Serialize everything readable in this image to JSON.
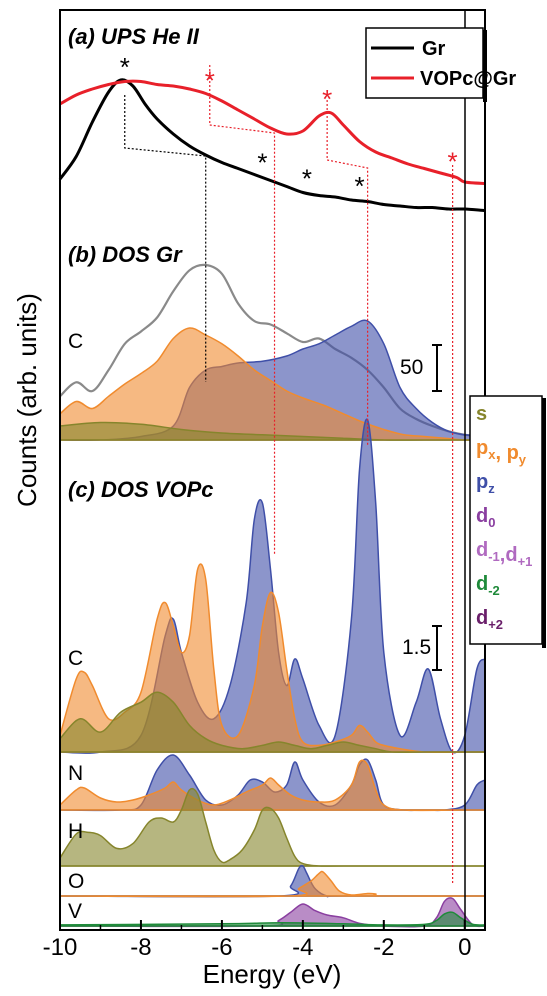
{
  "chart_data": {
    "type": "area",
    "xlabel": "Energy (eV)",
    "ylabel": "Counts (arb. units)",
    "xlim": [
      -10,
      0.5
    ],
    "x_ticks": [
      "-10",
      "-8",
      "-6",
      "-4",
      "-2",
      "0"
    ],
    "panels": {
      "a": {
        "title": "(a) UPS He II"
      },
      "b": {
        "title": "(b) DOS Gr",
        "element_label": "C",
        "scale_bar": "50"
      },
      "c": {
        "title": "(c) DOS VOPc",
        "element_labels": [
          "C",
          "N",
          "H",
          "O",
          "V"
        ],
        "scale_bar": "1.5"
      }
    },
    "legend_ups": [
      {
        "name": "Gr",
        "color": "#000000"
      },
      {
        "name": "VOPc@Gr",
        "color": "#e8202a"
      }
    ],
    "legend_orbitals": [
      {
        "main": "s",
        "sub": "",
        "main2": "",
        "sub2": "",
        "color": "#86852c"
      },
      {
        "main": "p",
        "sub": "x",
        "main2": ", p",
        "sub2": "y",
        "color": "#f08b2e"
      },
      {
        "main": "p",
        "sub": "z",
        "main2": "",
        "sub2": "",
        "color": "#3f4fa8"
      },
      {
        "main": "d",
        "sub": "0",
        "main2": "",
        "sub2": "",
        "color": "#8a3fa0"
      },
      {
        "main": "d",
        "sub": "-1",
        "main2": ",d",
        "sub2": "+1",
        "color": "#b06ac0"
      },
      {
        "main": "d",
        "sub": "-2",
        "main2": "",
        "sub2": "",
        "color": "#1f8a3a"
      },
      {
        "main": "d",
        "sub": "+2",
        "main2": "",
        "sub2": "",
        "color": "#6a1f6a"
      }
    ],
    "ups_peak_markers": {
      "Gr": [
        -8.4,
        -5.0,
        -3.9,
        -2.6
      ],
      "VOPc@Gr": [
        -6.3,
        -3.4,
        -0.3
      ]
    },
    "guide_lines_black": [
      [
        -8.4,
        -6.4
      ]
    ],
    "guide_lines_red": [
      [
        -6.3,
        -4.7
      ],
      [
        -3.4,
        -2.4
      ],
      [
        -0.3,
        -0.3
      ]
    ],
    "series": [
      {
        "name": "Gr UPS",
        "panel": "a",
        "color": "#000000",
        "x": [
          -10,
          -9.6,
          -9.2,
          -8.8,
          -8.5,
          -8.2,
          -7.9,
          -7.6,
          -7.2,
          -6.8,
          -6.4,
          -6.0,
          -5.6,
          -5.2,
          -4.8,
          -4.4,
          -4.0,
          -3.6,
          -3.2,
          -2.8,
          -2.4,
          -2.0,
          -1.6,
          -1.2,
          -0.8,
          -0.4,
          0,
          0.5
        ],
        "y": [
          0.3,
          0.45,
          0.68,
          0.88,
          0.96,
          0.92,
          0.8,
          0.7,
          0.6,
          0.52,
          0.46,
          0.41,
          0.37,
          0.33,
          0.29,
          0.25,
          0.21,
          0.19,
          0.18,
          0.16,
          0.15,
          0.13,
          0.12,
          0.11,
          0.11,
          0.1,
          0.1,
          0.09
        ]
      },
      {
        "name": "VOPc@Gr UPS",
        "panel": "a",
        "color": "#e8202a",
        "x": [
          -10,
          -9.6,
          -9.2,
          -8.8,
          -8.4,
          -8.0,
          -7.6,
          -7.2,
          -6.8,
          -6.4,
          -6.0,
          -5.6,
          -5.2,
          -4.8,
          -4.4,
          -4.0,
          -3.6,
          -3.3,
          -3.0,
          -2.6,
          -2.2,
          -1.8,
          -1.4,
          -1.0,
          -0.6,
          -0.2,
          0,
          0.5
        ],
        "y": [
          0.8,
          0.86,
          0.9,
          0.93,
          0.95,
          0.95,
          0.93,
          0.92,
          0.9,
          0.87,
          0.82,
          0.76,
          0.7,
          0.64,
          0.6,
          0.62,
          0.72,
          0.74,
          0.66,
          0.55,
          0.48,
          0.44,
          0.4,
          0.37,
          0.34,
          0.31,
          0.28,
          0.27
        ]
      },
      {
        "name": "Gr C total",
        "panel": "b",
        "color": "#8a8a8a",
        "x": [
          -10,
          -9.6,
          -9.2,
          -8.8,
          -8.4,
          -8.0,
          -7.6,
          -7.2,
          -6.8,
          -6.4,
          -6.0,
          -5.6,
          -5.2,
          -4.8,
          -4.4,
          -4.0,
          -3.6,
          -3.2,
          -2.8,
          -2.4,
          -2.0,
          -1.6,
          -1.2,
          -0.8,
          -0.4,
          0,
          0.5
        ],
        "y": [
          0.25,
          0.33,
          0.28,
          0.4,
          0.55,
          0.62,
          0.7,
          0.85,
          0.97,
          1.0,
          0.95,
          0.78,
          0.68,
          0.66,
          0.61,
          0.56,
          0.58,
          0.52,
          0.47,
          0.4,
          0.3,
          0.18,
          0.12,
          0.08,
          0.05,
          0.03,
          0.02
        ]
      },
      {
        "name": "Gr C pz",
        "panel": "b",
        "color": "#3f4fa8",
        "x": [
          -10,
          -9.0,
          -8.0,
          -7.2,
          -6.8,
          -6.4,
          -6.0,
          -5.6,
          -5.0,
          -4.4,
          -4.0,
          -3.6,
          -3.2,
          -2.8,
          -2.4,
          -2.0,
          -1.6,
          -1.2,
          -0.8,
          -0.4,
          0,
          0.5
        ],
        "y": [
          0.0,
          0.0,
          0.02,
          0.08,
          0.3,
          0.4,
          0.42,
          0.44,
          0.45,
          0.48,
          0.52,
          0.55,
          0.6,
          0.65,
          0.68,
          0.55,
          0.3,
          0.18,
          0.1,
          0.05,
          0.03,
          0.02
        ]
      },
      {
        "name": "Gr C px,py",
        "panel": "b",
        "color": "#f08b2e",
        "x": [
          -10,
          -9.6,
          -9.2,
          -8.8,
          -8.4,
          -8.0,
          -7.6,
          -7.2,
          -6.8,
          -6.4,
          -6.0,
          -5.6,
          -5.2,
          -4.8,
          -4.4,
          -4.0,
          -3.5,
          -3.0,
          -2.5,
          -2.0,
          -1.5,
          -1.0,
          -0.5,
          0,
          0.5
        ],
        "y": [
          0.15,
          0.22,
          0.18,
          0.25,
          0.32,
          0.38,
          0.45,
          0.58,
          0.64,
          0.6,
          0.55,
          0.48,
          0.4,
          0.34,
          0.28,
          0.24,
          0.2,
          0.15,
          0.1,
          0.06,
          0.03,
          0.02,
          0.01,
          0.0,
          0.0
        ]
      },
      {
        "name": "Gr C s",
        "panel": "b",
        "color": "#86852c",
        "x": [
          -10,
          -9.0,
          -8.0,
          -7.0,
          -6.0,
          -5.0,
          -4.0,
          -3.0,
          -2.0,
          -1.0,
          0,
          0.5
        ],
        "y": [
          0.08,
          0.1,
          0.09,
          0.06,
          0.04,
          0.03,
          0.02,
          0.01,
          0.0,
          0.0,
          0.0,
          0.0
        ]
      },
      {
        "name": "VOPc C pz",
        "panel": "c-C",
        "color": "#3f4fa8",
        "x": [
          -10,
          -9.0,
          -8.0,
          -7.4,
          -7.2,
          -7.0,
          -6.6,
          -6.2,
          -5.8,
          -5.4,
          -5.2,
          -5.0,
          -4.8,
          -4.6,
          -4.4,
          -4.2,
          -4.0,
          -3.6,
          -3.2,
          -2.8,
          -2.6,
          -2.4,
          -2.2,
          -2.0,
          -1.6,
          -1.2,
          -0.9,
          -0.6,
          -0.3,
          0,
          0.3,
          0.5
        ],
        "y": [
          0.0,
          0.0,
          0.05,
          0.35,
          0.4,
          0.3,
          0.15,
          0.1,
          0.2,
          0.45,
          0.7,
          0.75,
          0.55,
          0.3,
          0.2,
          0.28,
          0.22,
          0.08,
          0.05,
          0.4,
          0.85,
          1.0,
          0.75,
          0.3,
          0.05,
          0.15,
          0.25,
          0.1,
          0.0,
          0.05,
          0.25,
          0.28
        ]
      },
      {
        "name": "VOPc C px,py",
        "panel": "c-C",
        "color": "#f08b2e",
        "x": [
          -10,
          -9.6,
          -9.4,
          -9.2,
          -8.8,
          -8.4,
          -8.0,
          -7.6,
          -7.4,
          -7.2,
          -7.0,
          -6.8,
          -6.6,
          -6.4,
          -6.2,
          -6.0,
          -5.6,
          -5.2,
          -5.0,
          -4.8,
          -4.6,
          -4.4,
          -4.2,
          -4.0,
          -3.6,
          -3.2,
          -2.8,
          -2.6,
          -2.4,
          -2.2,
          -2.0,
          -1.6,
          -1.0,
          0,
          0.5
        ],
        "y": [
          0.05,
          0.22,
          0.24,
          0.2,
          0.1,
          0.12,
          0.18,
          0.4,
          0.45,
          0.38,
          0.3,
          0.35,
          0.55,
          0.52,
          0.25,
          0.08,
          0.05,
          0.2,
          0.38,
          0.48,
          0.42,
          0.25,
          0.1,
          0.03,
          0.02,
          0.03,
          0.05,
          0.08,
          0.06,
          0.03,
          0.02,
          0.01,
          0.0,
          0.0,
          0.0
        ]
      },
      {
        "name": "VOPc C s",
        "panel": "c-C",
        "color": "#86852c",
        "x": [
          -10,
          -9.5,
          -9.0,
          -8.5,
          -8.0,
          -7.6,
          -7.2,
          -6.8,
          -6.4,
          -6.0,
          -5.5,
          -5.0,
          -4.6,
          -4.2,
          -3.8,
          -3.4,
          -3.0,
          -2.6,
          -2.2,
          -1.8,
          -1.0,
          0,
          0.5
        ],
        "y": [
          0.04,
          0.1,
          0.06,
          0.12,
          0.15,
          0.18,
          0.15,
          0.08,
          0.04,
          0.02,
          0.01,
          0.02,
          0.03,
          0.02,
          0.01,
          0.02,
          0.03,
          0.02,
          0.01,
          0.0,
          0.0,
          0.0,
          0.0
        ]
      },
      {
        "name": "VOPc N pz",
        "panel": "c-N",
        "color": "#3f4fa8",
        "x": [
          -10,
          -8.5,
          -8.0,
          -7.6,
          -7.2,
          -6.8,
          -6.4,
          -6.0,
          -5.6,
          -5.3,
          -5.0,
          -4.7,
          -4.4,
          -4.2,
          -4.0,
          -3.6,
          -3.2,
          -2.8,
          -2.6,
          -2.4,
          -2.2,
          -2.0,
          -1.5,
          -1.0,
          -0.5,
          0,
          0.3,
          0.5
        ],
        "y": [
          0.0,
          0.0,
          0.05,
          0.4,
          0.55,
          0.35,
          0.1,
          0.05,
          0.15,
          0.3,
          0.28,
          0.18,
          0.25,
          0.48,
          0.3,
          0.08,
          0.05,
          0.25,
          0.45,
          0.5,
          0.3,
          0.05,
          0.0,
          0.0,
          0.0,
          0.05,
          0.25,
          0.3
        ]
      },
      {
        "name": "VOPc N px,py",
        "panel": "c-N",
        "color": "#f08b2e",
        "x": [
          -10,
          -9.6,
          -9.4,
          -9.0,
          -8.6,
          -8.2,
          -7.8,
          -7.4,
          -7.2,
          -7.0,
          -6.6,
          -6.2,
          -5.8,
          -5.4,
          -5.0,
          -4.8,
          -4.6,
          -4.3,
          -4.0,
          -3.6,
          -3.2,
          -2.8,
          -2.6,
          -2.4,
          -2.2,
          -2.0,
          -1.5,
          0,
          0.5
        ],
        "y": [
          0.05,
          0.2,
          0.22,
          0.12,
          0.08,
          0.1,
          0.15,
          0.22,
          0.28,
          0.2,
          0.1,
          0.05,
          0.1,
          0.18,
          0.25,
          0.32,
          0.25,
          0.15,
          0.1,
          0.08,
          0.1,
          0.25,
          0.48,
          0.45,
          0.2,
          0.05,
          0.0,
          0.0,
          0.0
        ]
      },
      {
        "name": "VOPc H s",
        "panel": "c-H",
        "color": "#86852c",
        "x": [
          -10,
          -9.6,
          -9.3,
          -9.0,
          -8.6,
          -8.2,
          -7.8,
          -7.5,
          -7.2,
          -7.0,
          -6.8,
          -6.6,
          -6.4,
          -6.2,
          -6.0,
          -5.8,
          -5.5,
          -5.2,
          -5.0,
          -4.8,
          -4.6,
          -4.4,
          -4.2,
          -4.0,
          -3.6,
          -3.0,
          0,
          0.5
        ],
        "y": [
          0.1,
          0.4,
          0.42,
          0.38,
          0.22,
          0.28,
          0.55,
          0.6,
          0.55,
          0.7,
          0.95,
          0.9,
          0.55,
          0.2,
          0.05,
          0.08,
          0.2,
          0.45,
          0.7,
          0.72,
          0.6,
          0.35,
          0.12,
          0.03,
          0.0,
          0.0,
          0.0,
          0.0
        ]
      },
      {
        "name": "VOPc O pz",
        "panel": "c-O",
        "color": "#3f4fa8",
        "x": [
          -10,
          -4.6,
          -4.3,
          -4.1,
          -4.0,
          -3.9,
          -3.7,
          -3.4,
          -3.0,
          0.5
        ],
        "y": [
          0.0,
          0.0,
          0.2,
          0.55,
          0.6,
          0.45,
          0.15,
          0.0,
          0.0,
          0.0
        ]
      },
      {
        "name": "VOPc O px,py",
        "panel": "c-O",
        "color": "#f08b2e",
        "x": [
          -10,
          -4.4,
          -4.1,
          -3.8,
          -3.6,
          -3.5,
          -3.3,
          -3.1,
          -2.8,
          -2.4,
          -2.2,
          -2.0,
          0.5
        ],
        "y": [
          0.0,
          0.0,
          0.15,
          0.3,
          0.45,
          0.48,
          0.3,
          0.1,
          0.02,
          0.05,
          0.04,
          0.0,
          0.0
        ]
      },
      {
        "name": "VOPc V d",
        "panel": "c-V",
        "color": "#8a3fa0",
        "x": [
          -10,
          -5.0,
          -4.6,
          -4.3,
          -4.0,
          -3.7,
          -3.4,
          -3.0,
          -2.6,
          -2.0,
          -1.0,
          -0.7,
          -0.5,
          -0.3,
          -0.1,
          0.2,
          0.5
        ],
        "y": [
          0.0,
          0.0,
          0.1,
          0.25,
          0.4,
          0.28,
          0.2,
          0.15,
          0.05,
          0.0,
          0.0,
          0.15,
          0.45,
          0.5,
          0.3,
          0.02,
          0.0
        ]
      },
      {
        "name": "VOPc V d-2",
        "panel": "c-V",
        "color": "#1f8a3a",
        "x": [
          -10,
          -6.0,
          -4.5,
          -3.0,
          -2.0,
          -1.0,
          -0.7,
          -0.5,
          -0.3,
          -0.1,
          0.2,
          0.5
        ],
        "y": [
          0.02,
          0.04,
          0.06,
          0.04,
          0.02,
          0.03,
          0.1,
          0.22,
          0.25,
          0.15,
          0.03,
          0.02
        ]
      }
    ]
  }
}
